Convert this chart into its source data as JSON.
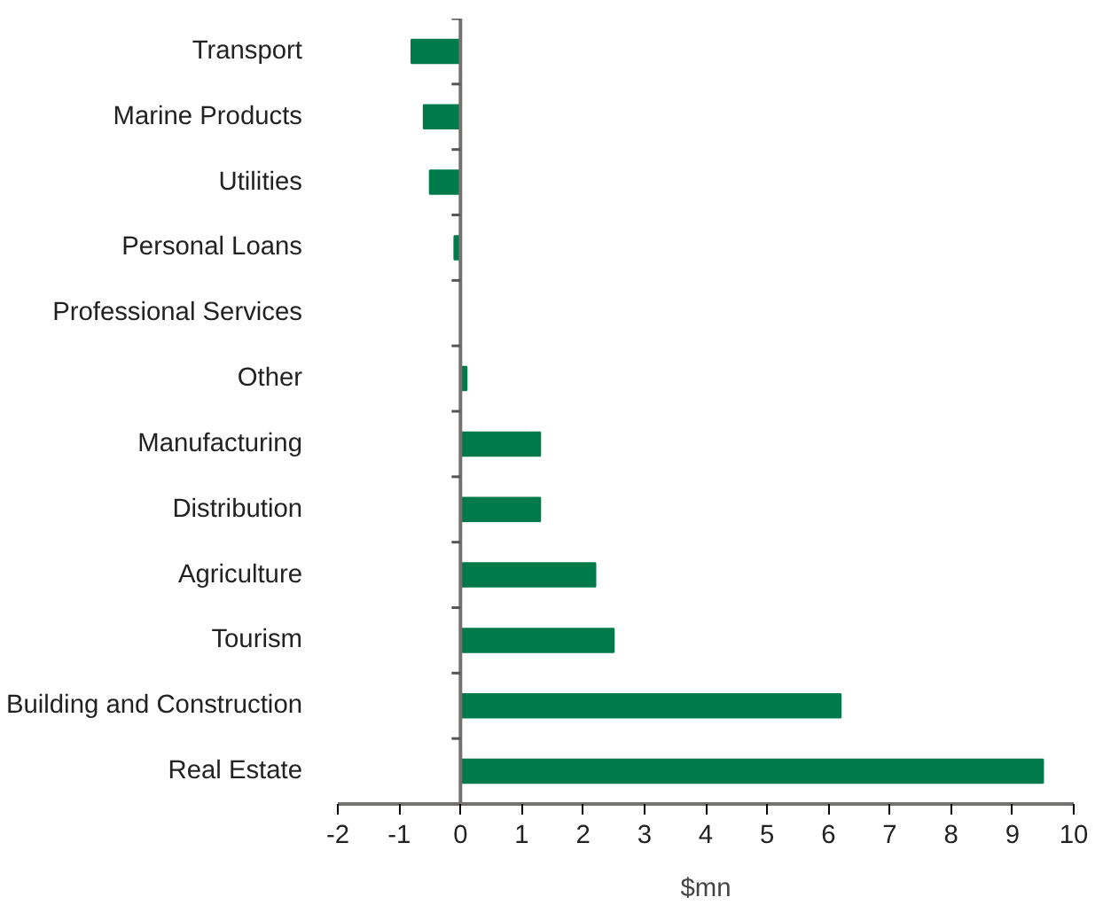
{
  "chart_data": {
    "type": "bar",
    "orientation": "horizontal",
    "xlabel": "$mn",
    "categories": [
      "Transport",
      "Marine Products",
      "Utilities",
      "Personal Loans",
      "Professional Services",
      "Other",
      "Manufacturing",
      "Distribution",
      "Agriculture",
      "Tourism",
      "Building and Construction",
      "Real Estate"
    ],
    "values": [
      -0.8,
      -0.6,
      -0.5,
      -0.1,
      0,
      0.1,
      1.3,
      1.3,
      2.2,
      2.5,
      6.2,
      9.5
    ],
    "color": "#007a4a",
    "xlim": [
      -2,
      10
    ],
    "xticks": [
      -2,
      -1,
      0,
      1,
      2,
      3,
      4,
      5,
      6,
      7,
      8,
      9,
      10
    ]
  }
}
